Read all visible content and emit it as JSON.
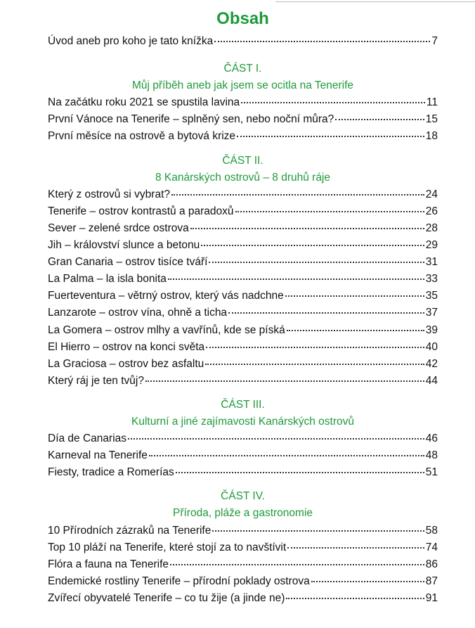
{
  "title": "Obsah",
  "intro": {
    "text": "Úvod aneb pro koho je tato knížka",
    "page": "7"
  },
  "parts": [
    {
      "heading": "ČÁST I.",
      "subtitle": "Můj příběh aneb jak jsem se ocitla na Tenerife",
      "entries": [
        {
          "text": "Na začátku roku 2021 se spustila lavina",
          "page": "11"
        },
        {
          "text": "První Vánoce na Tenerife – splněný sen, nebo noční můra?",
          "page": "15"
        },
        {
          "text": "První měsíce na ostrově a bytová krize",
          "page": "18"
        }
      ]
    },
    {
      "heading": "ČÁST II.",
      "subtitle": "8 Kanárských ostrovů – 8 druhů ráje",
      "entries": [
        {
          "text": "Který z ostrovů si vybrat?",
          "page": "24"
        },
        {
          "text": "Tenerife – ostrov kontrastů a paradoxů",
          "page": "26"
        },
        {
          "text": "Sever – zelené srdce ostrova",
          "page": "28"
        },
        {
          "text": "Jih – království slunce a betonu",
          "page": "29"
        },
        {
          "text": "Gran Canaria – ostrov tisíce tváří",
          "page": "31"
        },
        {
          "text": "La Palma – la isla bonita",
          "page": "33"
        },
        {
          "text": "Fuerteventura – větrný ostrov, který vás nadchne",
          "page": "35"
        },
        {
          "text": "Lanzarote – ostrov vína, ohně a ticha",
          "page": "37"
        },
        {
          "text": "La Gomera – ostrov mlhy a vavřínů, kde se píská",
          "page": "39"
        },
        {
          "text": "El Hierro – ostrov na konci světa",
          "page": "40"
        },
        {
          "text": "La Graciosa – ostrov bez asfaltu",
          "page": "42"
        },
        {
          "text": "Který ráj je ten tvůj?",
          "page": "44"
        }
      ]
    },
    {
      "heading": "ČÁST III.",
      "subtitle": "Kulturní a jiné zajímavosti Kanárských ostrovů",
      "entries": [
        {
          "text": "Día de Canarias",
          "page": "46"
        },
        {
          "text": "Karneval na Tenerife",
          "page": "48"
        },
        {
          "text": "Fiesty, tradice a Romerías",
          "page": "51"
        }
      ]
    },
    {
      "heading": "ČÁST IV.",
      "subtitle": "Příroda, pláže a gastronomie",
      "entries": [
        {
          "text": "10 Přírodních zázraků na Tenerife",
          "page": "58"
        },
        {
          "text": "Top 10 pláží na Tenerife, které stojí za to navštívit",
          "page": "74"
        },
        {
          "text": "Flóra a fauna na Tenerife",
          "page": "86"
        },
        {
          "text": "Endemické rostliny Tenerife – přírodní poklady ostrova",
          "page": "87"
        },
        {
          "text": "Zvířecí obyvatelé Tenerife – co tu žije (a jinde ne)",
          "page": "91"
        }
      ]
    }
  ]
}
